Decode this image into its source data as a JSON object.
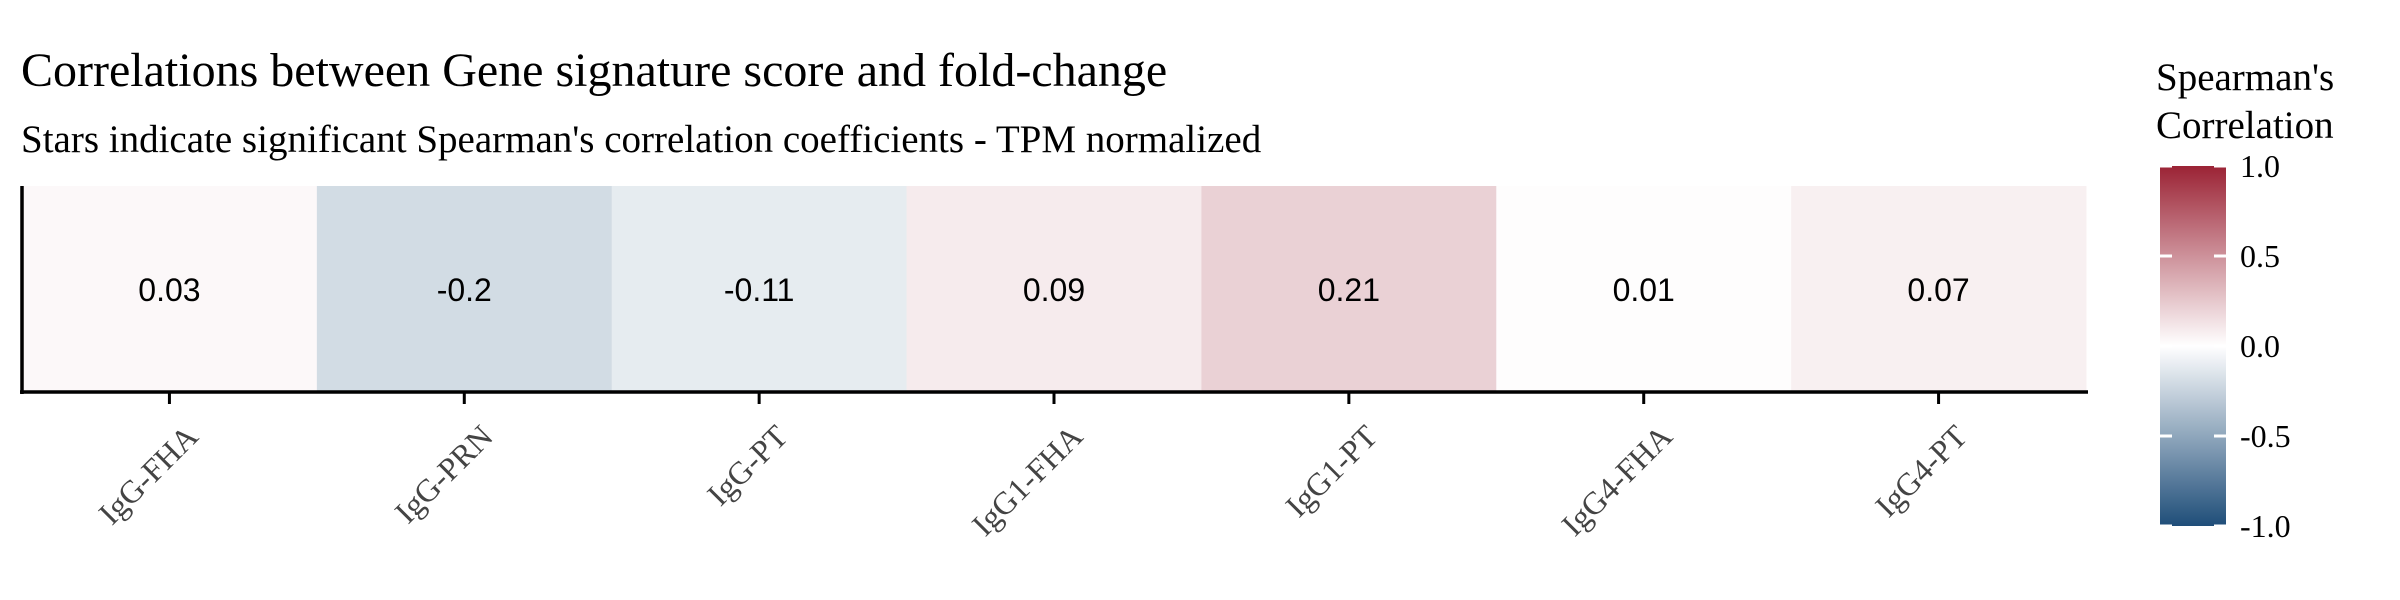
{
  "chart_data": {
    "type": "heatmap",
    "title": "Correlations between Gene signature score and fold-change",
    "subtitle": "Stars indicate significant Spearman's correlation coefficients - TPM normalized",
    "categories": [
      "IgG-FHA",
      "IgG-PRN",
      "IgG-PT",
      "IgG1-FHA",
      "IgG1-PT",
      "IgG4-FHA",
      "IgG4-PT"
    ],
    "values": [
      0.03,
      -0.2,
      -0.11,
      0.09,
      0.21,
      0.01,
      0.07
    ],
    "value_labels": [
      "0.03",
      "-0.2",
      "-0.11",
      "0.09",
      "0.21",
      "0.01",
      "0.07"
    ],
    "legend": {
      "title_lines": [
        "Spearman's",
        "Correlation"
      ],
      "limits": [
        -1.0,
        1.0
      ],
      "ticks": [
        1.0,
        0.5,
        0.0,
        -0.5,
        -1.0
      ],
      "tick_labels": [
        "1.0",
        "0.5",
        "0.0",
        "-0.5",
        "-1.0"
      ],
      "placement": "right"
    },
    "colors": {
      "low": "#1f4e79",
      "mid": "#ffffff",
      "high": "#9b2335"
    }
  }
}
